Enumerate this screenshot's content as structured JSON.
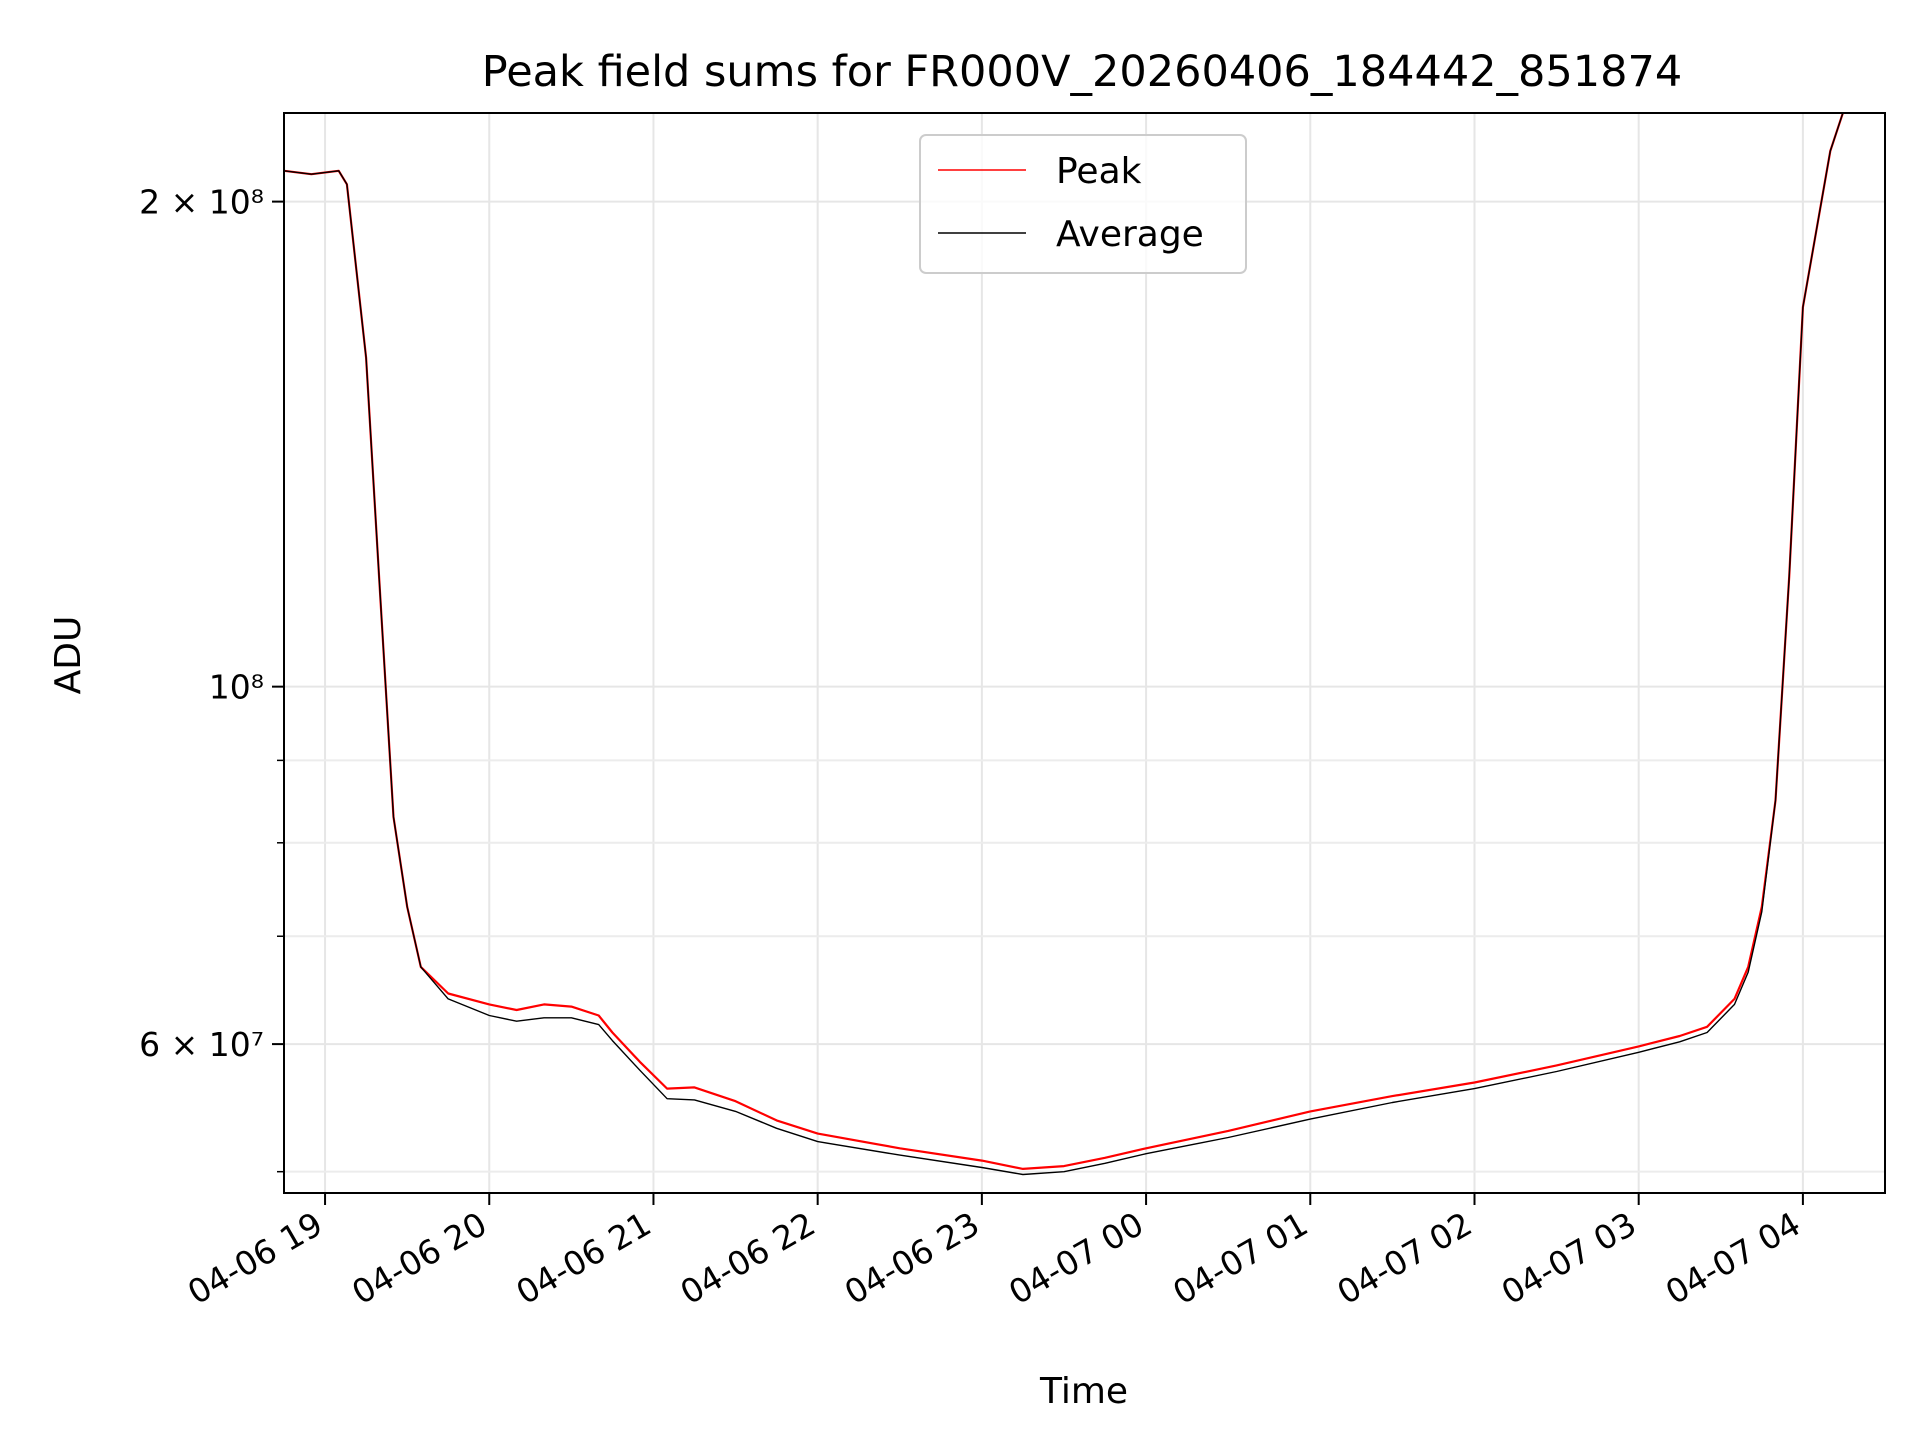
{
  "chart_data": {
    "type": "line",
    "title": "Peak field sums for FR000V_20260406_184442_851874",
    "xlabel": "Time",
    "ylabel": "ADU",
    "y_scale": "log",
    "grid": true,
    "legend_placement": "upper center",
    "xlim": [
      "2026-04-06 18:45",
      "2026-04-07 04:30"
    ],
    "ylim": [
      48500000,
      227000000
    ],
    "x_ticks": [
      {
        "value": "2026-04-06 19:00",
        "label": "04-06 19"
      },
      {
        "value": "2026-04-06 20:00",
        "label": "04-06 20"
      },
      {
        "value": "2026-04-06 21:00",
        "label": "04-06 21"
      },
      {
        "value": "2026-04-06 22:00",
        "label": "04-06 22"
      },
      {
        "value": "2026-04-06 23:00",
        "label": "04-06 23"
      },
      {
        "value": "2026-04-07 00:00",
        "label": "04-07 00"
      },
      {
        "value": "2026-04-07 01:00",
        "label": "04-07 01"
      },
      {
        "value": "2026-04-07 02:00",
        "label": "04-07 02"
      },
      {
        "value": "2026-04-07 03:00",
        "label": "04-07 03"
      },
      {
        "value": "2026-04-07 04:00",
        "label": "04-07 04"
      }
    ],
    "y_ticks_major": [
      {
        "value": 60000000,
        "label": "6 × 10⁷"
      },
      {
        "value": 100000000,
        "label": "10⁸"
      },
      {
        "value": 200000000,
        "label": "2 × 10⁸"
      }
    ],
    "y_ticks_minor": [
      50000000,
      70000000,
      80000000,
      90000000
    ],
    "series": [
      {
        "name": "Peak",
        "color": "#ff0000",
        "x": [
          "2026-04-06 18:45",
          "2026-04-06 18:55",
          "2026-04-06 19:05",
          "2026-04-06 19:08",
          "2026-04-06 19:15",
          "2026-04-06 19:20",
          "2026-04-06 19:25",
          "2026-04-06 19:30",
          "2026-04-06 19:35",
          "2026-04-06 19:45",
          "2026-04-06 20:00",
          "2026-04-06 20:10",
          "2026-04-06 20:20",
          "2026-04-06 20:30",
          "2026-04-06 20:40",
          "2026-04-06 20:45",
          "2026-04-06 20:55",
          "2026-04-06 21:05",
          "2026-04-06 21:15",
          "2026-04-06 21:30",
          "2026-04-06 21:45",
          "2026-04-06 22:00",
          "2026-04-06 22:30",
          "2026-04-06 23:00",
          "2026-04-06 23:15",
          "2026-04-06 23:30",
          "2026-04-06 23:45",
          "2026-04-07 00:00",
          "2026-04-07 00:30",
          "2026-04-07 01:00",
          "2026-04-07 01:30",
          "2026-04-07 02:00",
          "2026-04-07 02:30",
          "2026-04-07 03:00",
          "2026-04-07 03:15",
          "2026-04-07 03:25",
          "2026-04-07 03:35",
          "2026-04-07 03:40",
          "2026-04-07 03:45",
          "2026-04-07 03:50",
          "2026-04-07 03:55",
          "2026-04-07 04:00",
          "2026-04-07 04:10",
          "2026-04-07 04:15",
          "2026-04-07 04:25",
          "2026-04-07 04:30"
        ],
        "values": [
          209000000,
          208000000,
          209000000,
          205000000,
          160000000,
          115000000,
          83000000,
          73000000,
          67000000,
          64500000,
          63500000,
          63000000,
          63500000,
          63300000,
          62500000,
          61000000,
          58500000,
          56300000,
          56400000,
          55300000,
          53800000,
          52800000,
          51700000,
          50800000,
          50200000,
          50400000,
          51000000,
          51700000,
          53000000,
          54500000,
          55700000,
          56800000,
          58200000,
          59800000,
          60700000,
          61500000,
          64000000,
          67000000,
          73000000,
          85000000,
          117000000,
          172000000,
          215000000,
          228000000,
          228000000,
          228000000
        ]
      },
      {
        "name": "Average",
        "color": "#000000",
        "x": [
          "2026-04-06 18:45",
          "2026-04-06 18:55",
          "2026-04-06 19:05",
          "2026-04-06 19:08",
          "2026-04-06 19:15",
          "2026-04-06 19:20",
          "2026-04-06 19:25",
          "2026-04-06 19:30",
          "2026-04-06 19:35",
          "2026-04-06 19:45",
          "2026-04-06 20:00",
          "2026-04-06 20:10",
          "2026-04-06 20:20",
          "2026-04-06 20:30",
          "2026-04-06 20:40",
          "2026-04-06 20:45",
          "2026-04-06 20:55",
          "2026-04-06 21:05",
          "2026-04-06 21:15",
          "2026-04-06 21:30",
          "2026-04-06 21:45",
          "2026-04-06 22:00",
          "2026-04-06 22:30",
          "2026-04-06 23:00",
          "2026-04-06 23:15",
          "2026-04-06 23:30",
          "2026-04-06 23:45",
          "2026-04-07 00:00",
          "2026-04-07 00:30",
          "2026-04-07 01:00",
          "2026-04-07 01:30",
          "2026-04-07 02:00",
          "2026-04-07 02:30",
          "2026-04-07 03:00",
          "2026-04-07 03:15",
          "2026-04-07 03:25",
          "2026-04-07 03:35",
          "2026-04-07 03:40",
          "2026-04-07 03:45",
          "2026-04-07 03:50",
          "2026-04-07 03:55",
          "2026-04-07 04:00",
          "2026-04-07 04:10",
          "2026-04-07 04:15",
          "2026-04-07 04:25",
          "2026-04-07 04:30"
        ],
        "values": [
          209000000,
          208000000,
          209000000,
          205000000,
          160000000,
          115000000,
          83000000,
          73000000,
          67000000,
          64000000,
          62500000,
          62000000,
          62300000,
          62300000,
          61700000,
          60300000,
          57800000,
          55500000,
          55400000,
          54500000,
          53200000,
          52200000,
          51200000,
          50300000,
          49800000,
          50000000,
          50600000,
          51300000,
          52500000,
          53900000,
          55200000,
          56300000,
          57700000,
          59300000,
          60200000,
          61000000,
          63500000,
          66500000,
          72500000,
          85000000,
          117000000,
          172000000,
          215000000,
          228000000,
          228000000,
          228000000
        ]
      }
    ]
  }
}
